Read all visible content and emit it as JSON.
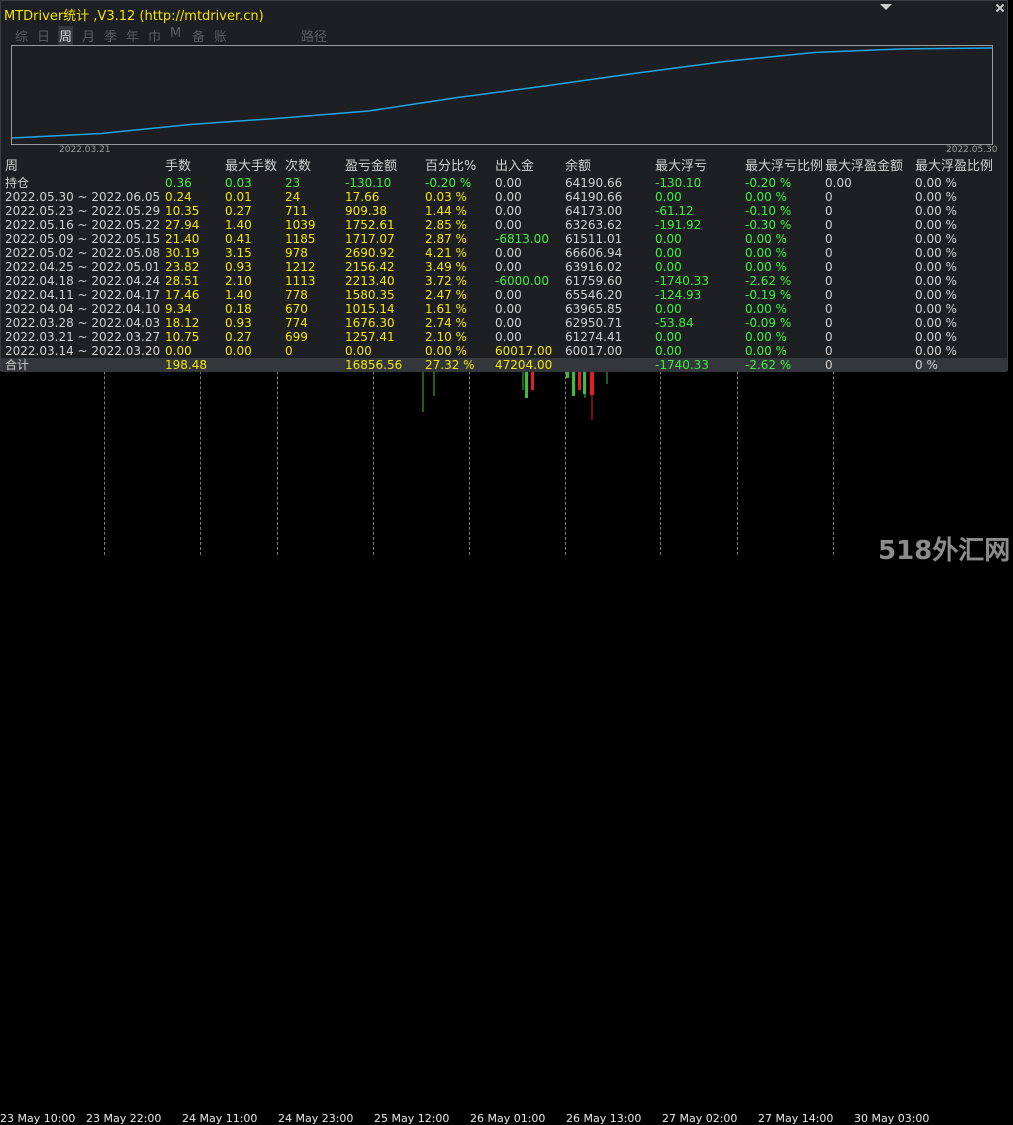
{
  "panel": {
    "title": "MTDriver统计 ,V3.12 (http://mtdriver.cn)",
    "tabs": [
      "综",
      "日",
      "周",
      "月",
      "季",
      "年",
      "巾",
      "M",
      "备",
      "账户"
    ],
    "active_tab": "周",
    "path_label": "路径",
    "chart_start_date": "2022.03.21",
    "chart_end_date": "2022.05.30"
  },
  "colors": {
    "yellow": "#f4e800",
    "green": "#3df03d",
    "white": "#d0d0d0",
    "line": "#1fa6e6"
  },
  "equity_curve": [
    0.0,
    0.05,
    0.15,
    0.22,
    0.3,
    0.45,
    0.58,
    0.72,
    0.85,
    0.95,
    0.99,
    1.0
  ],
  "table": {
    "headers": [
      "周",
      "手数",
      "最大手数",
      "次数",
      "盈亏金额",
      "百分比%",
      "出入金",
      "余额",
      "最大浮亏",
      "最大浮亏比例",
      "最大浮盈金额",
      "最大浮盈比例"
    ],
    "rows": [
      [
        "持仓",
        "0.36",
        "0.03",
        "23",
        "-130.10",
        "-0.20 %",
        "0.00",
        "64190.66",
        "-130.10",
        "-0.20 %",
        "0.00",
        "0.00 %"
      ],
      [
        "2022.05.30 ~ 2022.06.05",
        "0.24",
        "0.01",
        "24",
        "17.66",
        "0.03 %",
        "0.00",
        "64190.66",
        "0.00",
        "0.00 %",
        "0",
        "0.00 %"
      ],
      [
        "2022.05.23 ~ 2022.05.29",
        "10.35",
        "0.27",
        "711",
        "909.38",
        "1.44 %",
        "0.00",
        "64173.00",
        "-61.12",
        "-0.10 %",
        "0",
        "0.00 %"
      ],
      [
        "2022.05.16 ~ 2022.05.22",
        "27.94",
        "1.40",
        "1039",
        "1752.61",
        "2.85 %",
        "0.00",
        "63263.62",
        "-191.92",
        "-0.30 %",
        "0",
        "0.00 %"
      ],
      [
        "2022.05.09 ~ 2022.05.15",
        "21.40",
        "0.41",
        "1185",
        "1717.07",
        "2.87 %",
        "-6813.00",
        "61511.01",
        "0.00",
        "0.00 %",
        "0",
        "0.00 %"
      ],
      [
        "2022.05.02 ~ 2022.05.08",
        "30.19",
        "3.15",
        "978",
        "2690.92",
        "4.21 %",
        "0.00",
        "66606.94",
        "0.00",
        "0.00 %",
        "0",
        "0.00 %"
      ],
      [
        "2022.04.25 ~ 2022.05.01",
        "23.82",
        "0.93",
        "1212",
        "2156.42",
        "3.49 %",
        "0.00",
        "63916.02",
        "0.00",
        "0.00 %",
        "0",
        "0.00 %"
      ],
      [
        "2022.04.18 ~ 2022.04.24",
        "28.51",
        "2.10",
        "1113",
        "2213.40",
        "3.72 %",
        "-6000.00",
        "61759.60",
        "-1740.33",
        "-2.62 %",
        "0",
        "0.00 %"
      ],
      [
        "2022.04.11 ~ 2022.04.17",
        "17.46",
        "1.40",
        "778",
        "1580.35",
        "2.47 %",
        "0.00",
        "65546.20",
        "-124.93",
        "-0.19 %",
        "0",
        "0.00 %"
      ],
      [
        "2022.04.04 ~ 2022.04.10",
        "9.34",
        "0.18",
        "670",
        "1015.14",
        "1.61 %",
        "0.00",
        "63965.85",
        "0.00",
        "0.00 %",
        "0",
        "0.00 %"
      ],
      [
        "2022.03.28 ~ 2022.04.03",
        "18.12",
        "0.93",
        "774",
        "1676.30",
        "2.74 %",
        "0.00",
        "62950.71",
        "-53.84",
        "-0.09 %",
        "0",
        "0.00 %"
      ],
      [
        "2022.03.21 ~ 2022.03.27",
        "10.75",
        "0.27",
        "699",
        "1257.41",
        "2.10 %",
        "0.00",
        "61274.41",
        "0.00",
        "0.00 %",
        "0",
        "0.00 %"
      ],
      [
        "2022.03.14 ~ 2022.03.20",
        "0.00",
        "0.00",
        "0",
        "0.00",
        "0.00 %",
        "60017.00",
        "60017.00",
        "0.00",
        "0.00 %",
        "0",
        "0.00 %"
      ]
    ],
    "total": [
      "合计",
      "198.48",
      "",
      "",
      "16856.56",
      "27.32 %",
      "47204.00",
      "",
      "-1740.33",
      "-2.62 %",
      "0",
      "0 %"
    ]
  },
  "chart_axis": {
    "time_labels": [
      "23 May 22:00",
      "24 May 11:00",
      "24 May 23:00",
      "25 May 12:00",
      "26 May 01:00",
      "26 May 13:00",
      "27 May 02:00",
      "27 May 14:00",
      "30 May 03:00"
    ],
    "first_partial_label": "23 May 10:00"
  },
  "watermark": "518外汇网"
}
